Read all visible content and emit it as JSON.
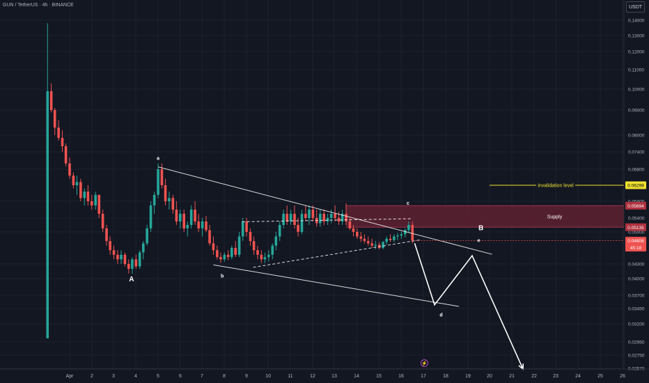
{
  "header": {
    "title": "GUN / TetherUS · 4h · BINANCE"
  },
  "currency": "USDT",
  "flash_icon": "⚡",
  "colors": {
    "background": "#131722",
    "grid": "#1e222d",
    "up": "#26a69a",
    "down": "#ef5350",
    "axis_text": "#b2b5be",
    "drawing": "#ffffff",
    "invalidation": "#f0e130",
    "supply_fill": "#5e2131",
    "supply_border": "#a33545",
    "current_price": "#ef5350"
  },
  "chart_data": {
    "type": "candlestick",
    "instrument": "GUN / TetherUS",
    "timeframe": "4h",
    "exchange": "BINANCE",
    "y_axis": {
      "ticks": [
        "0.14000",
        "0.13000",
        "0.12000",
        "0.11000",
        "0.10000",
        "0.09000",
        "0.08000",
        "0.07400",
        "0.06800",
        "0.05800",
        "0.05400",
        "0.05000",
        "0.04300",
        "0.04000",
        "0.03700",
        "0.03450",
        "0.03200",
        "0.02950",
        "0.02750",
        "0.02570"
      ]
    },
    "x_axis": {
      "ticks": [
        "Apr",
        "2",
        "3",
        "4",
        "5",
        "6",
        "7",
        "8",
        "9",
        "10",
        "11",
        "12",
        "13",
        "14",
        "15",
        "16",
        "17",
        "18",
        "19",
        "20",
        "21",
        "22",
        "23",
        "24",
        "25",
        "26"
      ],
      "tick_x_days": [
        3.5,
        4,
        5,
        6,
        7,
        8,
        9,
        10,
        11,
        12,
        13,
        14,
        15,
        16,
        17,
        18,
        19,
        20,
        21,
        22,
        23,
        24,
        25,
        26,
        27,
        28
      ]
    },
    "price_labels": [
      {
        "value": "0.06299",
        "type": "invalidation"
      },
      {
        "value": "0.05694",
        "type": "supply_top"
      },
      {
        "value": "0.05135",
        "type": "supply_bottom"
      },
      {
        "value": "0.04808",
        "type": "current"
      },
      {
        "value": "45:18",
        "type": "countdown"
      }
    ],
    "invalidation": {
      "label": "invalidation level",
      "price": 0.06299
    },
    "supply_zone": {
      "label": "Supply",
      "top": 0.05694,
      "bottom": 0.05135,
      "start_day": 16.0
    },
    "candles": [
      [
        2.5,
        0.03,
        0.138,
        0.03,
        0.099
      ],
      [
        2.67,
        0.099,
        0.103,
        0.089,
        0.09
      ],
      [
        2.83,
        0.09,
        0.091,
        0.08,
        0.083
      ],
      [
        3.0,
        0.083,
        0.086,
        0.078,
        0.079
      ],
      [
        3.17,
        0.079,
        0.082,
        0.074,
        0.076
      ],
      [
        3.33,
        0.076,
        0.077,
        0.069,
        0.07
      ],
      [
        3.5,
        0.07,
        0.072,
        0.065,
        0.066
      ],
      [
        3.67,
        0.066,
        0.067,
        0.062,
        0.063
      ],
      [
        3.83,
        0.063,
        0.066,
        0.06,
        0.064
      ],
      [
        4.0,
        0.064,
        0.065,
        0.058,
        0.059
      ],
      [
        4.17,
        0.059,
        0.062,
        0.057,
        0.061
      ],
      [
        4.33,
        0.061,
        0.063,
        0.057,
        0.058
      ],
      [
        4.5,
        0.058,
        0.06,
        0.056,
        0.057
      ],
      [
        4.67,
        0.057,
        0.061,
        0.056,
        0.06
      ],
      [
        4.83,
        0.06,
        0.06,
        0.054,
        0.055
      ],
      [
        5.0,
        0.055,
        0.056,
        0.05,
        0.051
      ],
      [
        5.17,
        0.051,
        0.052,
        0.047,
        0.048
      ],
      [
        5.33,
        0.048,
        0.049,
        0.045,
        0.046
      ],
      [
        5.5,
        0.046,
        0.047,
        0.044,
        0.045
      ],
      [
        5.67,
        0.045,
        0.046,
        0.043,
        0.044
      ],
      [
        5.83,
        0.044,
        0.046,
        0.043,
        0.045
      ],
      [
        6.0,
        0.045,
        0.0455,
        0.0425,
        0.043
      ],
      [
        6.17,
        0.043,
        0.044,
        0.041,
        0.042
      ],
      [
        6.33,
        0.042,
        0.0445,
        0.041,
        0.044
      ],
      [
        6.5,
        0.044,
        0.045,
        0.042,
        0.0425
      ],
      [
        6.67,
        0.0425,
        0.046,
        0.042,
        0.0455
      ],
      [
        6.83,
        0.0455,
        0.048,
        0.044,
        0.0475
      ],
      [
        7.0,
        0.0475,
        0.052,
        0.047,
        0.051
      ],
      [
        7.17,
        0.051,
        0.058,
        0.05,
        0.057
      ],
      [
        7.33,
        0.057,
        0.061,
        0.055,
        0.06
      ],
      [
        7.5,
        0.06,
        0.07,
        0.059,
        0.068
      ],
      [
        7.67,
        0.068,
        0.07,
        0.062,
        0.063
      ],
      [
        7.83,
        0.063,
        0.065,
        0.057,
        0.058
      ],
      [
        8.0,
        0.058,
        0.061,
        0.056,
        0.059
      ],
      [
        8.17,
        0.059,
        0.06,
        0.055,
        0.056
      ],
      [
        8.33,
        0.056,
        0.058,
        0.052,
        0.053
      ],
      [
        8.5,
        0.053,
        0.056,
        0.051,
        0.055
      ],
      [
        8.67,
        0.055,
        0.056,
        0.05,
        0.051
      ],
      [
        8.83,
        0.051,
        0.053,
        0.049,
        0.052
      ],
      [
        9.0,
        0.052,
        0.057,
        0.051,
        0.056
      ],
      [
        9.17,
        0.056,
        0.058,
        0.052,
        0.053
      ],
      [
        9.33,
        0.053,
        0.055,
        0.05,
        0.051
      ],
      [
        9.5,
        0.051,
        0.054,
        0.049,
        0.053
      ],
      [
        9.67,
        0.053,
        0.0545,
        0.05,
        0.0505
      ],
      [
        9.83,
        0.0505,
        0.052,
        0.047,
        0.0475
      ],
      [
        10.0,
        0.0475,
        0.049,
        0.045,
        0.046
      ],
      [
        10.17,
        0.046,
        0.047,
        0.044,
        0.0445
      ],
      [
        10.33,
        0.0445,
        0.0455,
        0.0432,
        0.044
      ],
      [
        10.5,
        0.044,
        0.0455,
        0.0435,
        0.045
      ],
      [
        10.67,
        0.045,
        0.046,
        0.0438,
        0.0445
      ],
      [
        10.83,
        0.0445,
        0.047,
        0.044,
        0.0465
      ],
      [
        11.0,
        0.0465,
        0.048,
        0.0445,
        0.045
      ],
      [
        11.17,
        0.045,
        0.05,
        0.0445,
        0.049
      ],
      [
        11.33,
        0.049,
        0.054,
        0.048,
        0.053
      ],
      [
        11.5,
        0.053,
        0.054,
        0.049,
        0.05
      ],
      [
        11.67,
        0.05,
        0.051,
        0.047,
        0.048
      ],
      [
        11.83,
        0.048,
        0.049,
        0.045,
        0.046
      ],
      [
        12.0,
        0.046,
        0.047,
        0.044,
        0.045
      ],
      [
        12.17,
        0.045,
        0.046,
        0.0432,
        0.044
      ],
      [
        12.33,
        0.044,
        0.0455,
        0.0432,
        0.0445
      ],
      [
        12.5,
        0.0445,
        0.046,
        0.0435,
        0.045
      ],
      [
        12.67,
        0.045,
        0.0475,
        0.044,
        0.047
      ],
      [
        12.83,
        0.047,
        0.05,
        0.046,
        0.049
      ],
      [
        13.0,
        0.049,
        0.053,
        0.048,
        0.052
      ],
      [
        13.17,
        0.052,
        0.056,
        0.051,
        0.055
      ],
      [
        13.33,
        0.055,
        0.057,
        0.052,
        0.053
      ],
      [
        13.5,
        0.053,
        0.056,
        0.052,
        0.055
      ],
      [
        13.67,
        0.055,
        0.057,
        0.051,
        0.052
      ],
      [
        13.83,
        0.052,
        0.054,
        0.049,
        0.05
      ],
      [
        14.0,
        0.05,
        0.056,
        0.0495,
        0.055
      ],
      [
        14.17,
        0.055,
        0.057,
        0.053,
        0.054
      ],
      [
        14.33,
        0.054,
        0.057,
        0.052,
        0.056
      ],
      [
        14.5,
        0.056,
        0.057,
        0.053,
        0.054
      ],
      [
        14.67,
        0.054,
        0.056,
        0.0515,
        0.0525
      ],
      [
        14.83,
        0.0525,
        0.056,
        0.0515,
        0.055
      ],
      [
        15.0,
        0.055,
        0.056,
        0.052,
        0.053
      ],
      [
        15.17,
        0.053,
        0.055,
        0.052,
        0.054
      ],
      [
        15.33,
        0.054,
        0.056,
        0.0525,
        0.055
      ],
      [
        15.5,
        0.055,
        0.057,
        0.053,
        0.054
      ],
      [
        15.67,
        0.054,
        0.0555,
        0.052,
        0.053
      ],
      [
        15.83,
        0.053,
        0.056,
        0.052,
        0.055
      ],
      [
        16.0,
        0.055,
        0.0575,
        0.052,
        0.053
      ],
      [
        16.17,
        0.053,
        0.054,
        0.0505,
        0.051
      ],
      [
        16.33,
        0.051,
        0.052,
        0.049,
        0.05
      ],
      [
        16.5,
        0.05,
        0.051,
        0.0485,
        0.049
      ],
      [
        16.67,
        0.049,
        0.05,
        0.0478,
        0.0485
      ],
      [
        16.83,
        0.0485,
        0.0495,
        0.0475,
        0.048
      ],
      [
        17.0,
        0.048,
        0.049,
        0.047,
        0.0475
      ],
      [
        17.17,
        0.0475,
        0.0485,
        0.0465,
        0.047
      ],
      [
        17.33,
        0.047,
        0.048,
        0.0462,
        0.0472
      ],
      [
        17.5,
        0.0472,
        0.0478,
        0.0462,
        0.0465
      ],
      [
        17.67,
        0.0465,
        0.048,
        0.0462,
        0.0478
      ],
      [
        17.83,
        0.0478,
        0.049,
        0.0472,
        0.0485
      ],
      [
        18.0,
        0.0485,
        0.0495,
        0.0478,
        0.0482
      ],
      [
        18.17,
        0.0482,
        0.0495,
        0.0478,
        0.049
      ],
      [
        18.33,
        0.049,
        0.0498,
        0.0482,
        0.0492
      ],
      [
        18.5,
        0.0492,
        0.05,
        0.0485,
        0.0495
      ],
      [
        18.67,
        0.0495,
        0.051,
        0.0488,
        0.0505
      ],
      [
        18.83,
        0.0505,
        0.053,
        0.0498,
        0.052
      ],
      [
        19.0,
        0.052,
        0.053,
        0.0475,
        0.0481
      ]
    ],
    "wave_labels": [
      {
        "text": "A",
        "day": 6.3,
        "price": 0.0395,
        "emphasis": true
      },
      {
        "text": "a",
        "day": 7.5,
        "price": 0.0712,
        "emphasis": false
      },
      {
        "text": "b",
        "day": 10.4,
        "price": 0.0402,
        "emphasis": false
      },
      {
        "text": "c",
        "day": 18.8,
        "price": 0.0572,
        "emphasis": false
      },
      {
        "text": "d",
        "day": 20.3,
        "price": 0.0332,
        "emphasis": false
      },
      {
        "text": "B",
        "day": 22.1,
        "price": 0.0505,
        "emphasis": true
      },
      {
        "text": "e",
        "day": 22.0,
        "price": 0.0478,
        "emphasis": false
      }
    ],
    "trendlines": [
      {
        "style": "solid",
        "from": [
          7.5,
          0.0688
        ],
        "to": [
          22.6,
          0.0451
        ]
      },
      {
        "style": "solid",
        "from": [
          10.0,
          0.0428
        ],
        "to": [
          21.1,
          0.0349
        ]
      },
      {
        "style": "dashed",
        "from": [
          11.3,
          0.0529
        ],
        "to": [
          19.0,
          0.0538
        ]
      },
      {
        "style": "dashed",
        "from": [
          11.8,
          0.0423
        ],
        "to": [
          19.4,
          0.0483
        ]
      }
    ],
    "projection_path": [
      [
        19.1,
        0.0475
      ],
      [
        20.0,
        0.0352
      ],
      [
        21.7,
        0.0448
      ],
      [
        24.0,
        0.0256
      ]
    ]
  }
}
